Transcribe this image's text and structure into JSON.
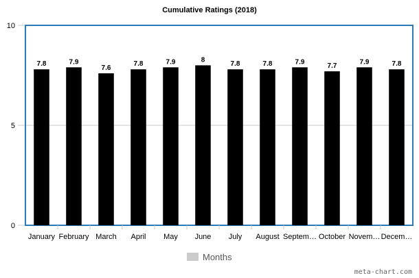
{
  "chart_data": {
    "type": "bar",
    "title": "Cumulative Ratings (2018)",
    "categories": [
      "January",
      "February",
      "March",
      "April",
      "May",
      "June",
      "July",
      "August",
      "Septem…",
      "October",
      "Novem…",
      "Decem…"
    ],
    "series": [
      {
        "name": "Months",
        "color": "#000000",
        "values": [
          7.8,
          7.9,
          7.6,
          7.8,
          7.9,
          8,
          7.8,
          7.8,
          7.9,
          7.7,
          7.9,
          7.8
        ]
      }
    ],
    "ylim": [
      0,
      10
    ],
    "yticks": [
      0,
      5,
      10
    ],
    "grid": true,
    "legend_position": "bottom",
    "legend_swatch_color": "#cccccc",
    "plot_border_color": "#2a7ab8"
  },
  "footer": {
    "credit": "meta-chart.com"
  }
}
